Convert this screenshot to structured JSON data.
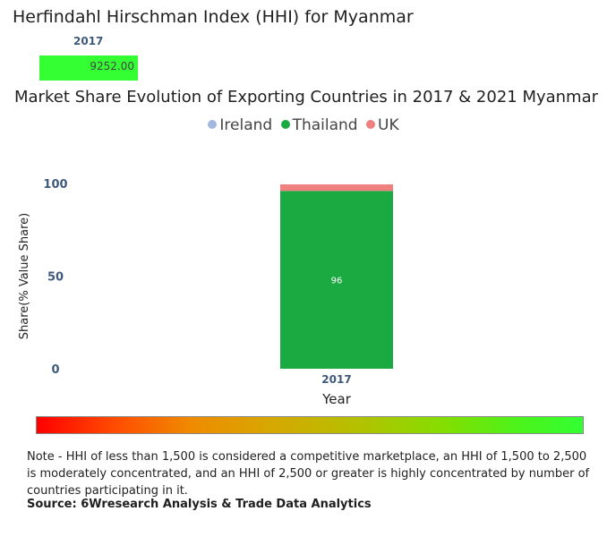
{
  "hhi": {
    "title": "Herfindahl Hirschman Index (HHI) for Myanmar",
    "year": "2017",
    "value_label": "9252.00",
    "bar_color": "#33ff33"
  },
  "legend": {
    "items": [
      {
        "name": "Ireland",
        "color": "#a3b8e0"
      },
      {
        "name": "Thailand",
        "color": "#1aaa41"
      },
      {
        "name": "UK",
        "color": "#f08080"
      }
    ]
  },
  "chart_data": {
    "type": "bar",
    "stacked": true,
    "title": "Market Share Evolution of Exporting Countries in 2017 & 2021 Myanmar",
    "xlabel": "Year",
    "ylabel": "Share(% Value Share)",
    "categories": [
      "2017"
    ],
    "ylim": [
      0,
      100
    ],
    "yticks": [
      0,
      50,
      100
    ],
    "series": [
      {
        "name": "Ireland",
        "color": "#a3b8e0",
        "values": [
          0
        ]
      },
      {
        "name": "Thailand",
        "color": "#1aaa41",
        "values": [
          96
        ],
        "data_labels": [
          "96"
        ]
      },
      {
        "name": "UK",
        "color": "#f08080",
        "values": [
          3.5
        ]
      }
    ],
    "legend_position": "top-center",
    "grid": false
  },
  "note": "Note - HHI of less than 1,500 is considered a competitive marketplace, an HHI of 1,500 to 2,500 is moderately concentrated, and an HHI of 2,500 or greater is highly concentrated by number of countries participating in it.",
  "source": "Source: 6Wresearch Analysis & Trade Data Analytics"
}
